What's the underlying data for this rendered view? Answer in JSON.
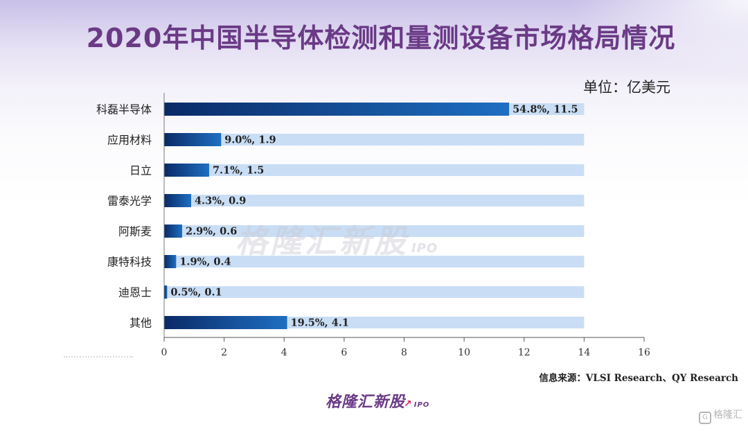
{
  "title": "2020年中国半导体检测和量测设备市场格局情况",
  "unit": "单位：亿美元",
  "source": "信息来源：VLSI Research、QY Research",
  "watermark": {
    "text": "格隆汇新股",
    "suffix": "IPO"
  },
  "footer_logo": {
    "text": "格隆汇新股",
    "suffix": "IPO"
  },
  "corner_brand": {
    "icon": "G",
    "text": "格隆汇"
  },
  "colors": {
    "bar_dark": "#0a2a66",
    "bar_light": "#1e6fc2",
    "track": "#c9def5",
    "title": "#6a3a86"
  },
  "chart_data": {
    "type": "bar",
    "orientation": "horizontal",
    "categories": [
      "科磊半导体",
      "应用材料",
      "日立",
      "雷泰光学",
      "阿斯麦",
      "康特科技",
      "迪恩士",
      "其他"
    ],
    "values": [
      11.5,
      1.9,
      1.5,
      0.9,
      0.6,
      0.4,
      0.1,
      4.1
    ],
    "shares": [
      "54.8%",
      "9.0%",
      "7.1%",
      "4.3%",
      "2.9%",
      "1.9%",
      "0.5%",
      "19.5%"
    ],
    "data_labels": [
      "54.8%, 11.5",
      "9.0%, 1.9",
      "7.1%, 1.5",
      "4.3%, 0.9",
      "2.9%, 0.6",
      "1.9%, 0.4",
      "0.5%, 0.1",
      "19.5%, 4.1"
    ],
    "track_max": 14,
    "xlim": [
      0,
      16
    ],
    "xticks": [
      0,
      2,
      4,
      6,
      8,
      10,
      12,
      14,
      16
    ],
    "grid": false,
    "legend": "none"
  }
}
